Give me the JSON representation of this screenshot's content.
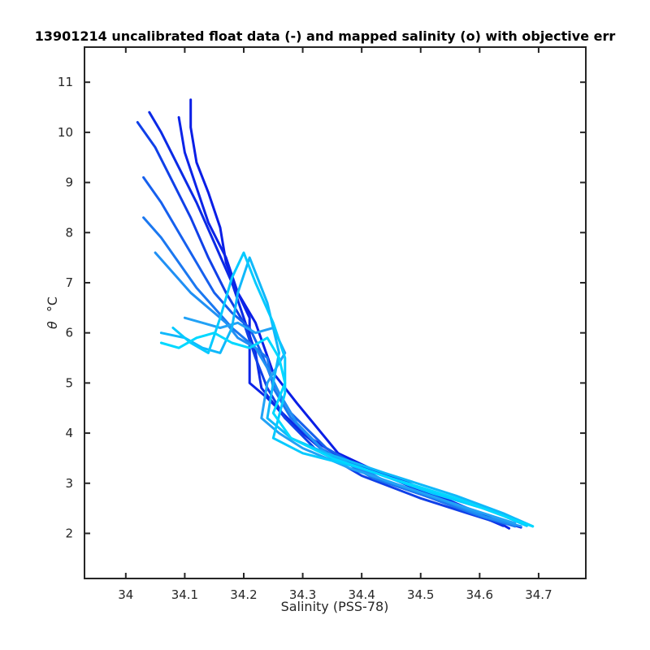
{
  "chart_data": {
    "type": "line",
    "title": "13901214 uncalibrated float data (-) and mapped salinity (o) with objective err",
    "xlabel": "Salinity (PSS-78)",
    "ylabel_symbol": "θ",
    "ylabel_unit": "°C",
    "xlim": [
      33.93,
      34.78
    ],
    "ylim": [
      1.1,
      11.7
    ],
    "xticks": [
      "34",
      "34.1",
      "34.2",
      "34.3",
      "34.4",
      "34.5",
      "34.6",
      "34.7"
    ],
    "yticks": [
      "2",
      "3",
      "4",
      "5",
      "6",
      "7",
      "8",
      "9",
      "10",
      "11"
    ],
    "grid": false,
    "color_range": [
      "#0010e0",
      "#00d8ff"
    ],
    "series": [
      {
        "color": "#0a1ee6",
        "x": [
          34.11,
          34.11,
          34.12,
          34.14,
          34.16,
          34.17,
          34.19,
          34.22,
          34.25,
          34.29,
          34.36,
          34.45,
          34.55,
          34.62,
          34.67
        ],
        "y": [
          10.65,
          10.1,
          9.4,
          8.8,
          8.1,
          7.4,
          6.8,
          6.2,
          5.2,
          4.6,
          3.6,
          3.1,
          2.6,
          2.3,
          2.12
        ]
      },
      {
        "color": "#0c24e8",
        "x": [
          34.09,
          34.1,
          34.12,
          34.14,
          34.17,
          34.19,
          34.21,
          34.21,
          34.24,
          34.3,
          34.38,
          34.48,
          34.56,
          34.62,
          34.65
        ],
        "y": [
          10.3,
          9.6,
          8.9,
          8.2,
          7.5,
          6.8,
          6.3,
          5.0,
          4.7,
          4.0,
          3.4,
          3.0,
          2.6,
          2.3,
          2.1
        ]
      },
      {
        "color": "#0b2ae6",
        "x": [
          34.04,
          34.06,
          34.09,
          34.12,
          34.15,
          34.18,
          34.2,
          34.22,
          34.23,
          34.27,
          34.33,
          34.42,
          34.52,
          34.6,
          34.64
        ],
        "y": [
          10.4,
          10.0,
          9.3,
          8.6,
          7.8,
          7.0,
          6.3,
          5.6,
          4.9,
          4.3,
          3.7,
          3.1,
          2.7,
          2.35,
          2.15
        ]
      },
      {
        "color": "#1040e8",
        "x": [
          34.02,
          34.05,
          34.08,
          34.11,
          34.14,
          34.17,
          34.2,
          34.22,
          34.24,
          34.27,
          34.32,
          34.4,
          34.5,
          34.58,
          34.64
        ],
        "y": [
          10.2,
          9.7,
          9.0,
          8.3,
          7.5,
          6.8,
          6.2,
          5.5,
          4.9,
          4.3,
          3.7,
          3.15,
          2.7,
          2.4,
          2.18
        ]
      },
      {
        "color": "#1660ee",
        "x": [
          34.03,
          34.06,
          34.09,
          34.12,
          34.15,
          34.18,
          34.21,
          34.23,
          34.25,
          34.28,
          34.34,
          34.43,
          34.53,
          34.6,
          34.66
        ],
        "y": [
          9.1,
          8.6,
          8.0,
          7.4,
          6.8,
          6.4,
          6.1,
          5.6,
          5.0,
          4.4,
          3.7,
          3.1,
          2.65,
          2.35,
          2.15
        ]
      },
      {
        "color": "#1b78f0",
        "x": [
          34.03,
          34.06,
          34.09,
          34.12,
          34.15,
          34.18,
          34.21,
          34.24,
          34.25,
          34.28,
          34.33,
          34.42,
          34.52,
          34.6,
          34.66
        ],
        "y": [
          8.3,
          7.9,
          7.4,
          6.9,
          6.5,
          6.1,
          5.8,
          5.5,
          4.9,
          4.3,
          3.7,
          3.1,
          2.7,
          2.35,
          2.14
        ]
      },
      {
        "color": "#2090f4",
        "x": [
          34.05,
          34.08,
          34.11,
          34.14,
          34.17,
          34.19,
          34.22,
          34.24,
          34.26,
          34.29,
          34.34,
          34.44,
          34.54,
          34.61,
          34.67
        ],
        "y": [
          7.6,
          7.2,
          6.8,
          6.5,
          6.2,
          5.9,
          5.7,
          5.3,
          4.8,
          4.2,
          3.6,
          3.05,
          2.65,
          2.33,
          2.14
        ]
      },
      {
        "color": "#22a2f6",
        "x": [
          34.1,
          34.13,
          34.16,
          34.19,
          34.22,
          34.25,
          34.27,
          34.24,
          34.23,
          34.26,
          34.3,
          34.38,
          34.48,
          34.58,
          34.66
        ],
        "y": [
          6.3,
          6.2,
          6.1,
          6.2,
          6.0,
          6.1,
          5.6,
          5.0,
          4.3,
          4.0,
          3.7,
          3.3,
          2.9,
          2.5,
          2.2
        ]
      },
      {
        "color": "#10b8fa",
        "x": [
          34.06,
          34.1,
          34.13,
          34.16,
          34.18,
          34.19,
          34.21,
          34.24,
          34.26,
          34.25,
          34.24,
          34.28,
          34.34,
          34.44,
          34.56,
          34.64,
          34.69
        ],
        "y": [
          6.0,
          5.9,
          5.7,
          5.6,
          6.1,
          6.8,
          7.5,
          6.6,
          5.6,
          5.0,
          4.3,
          3.9,
          3.6,
          3.2,
          2.75,
          2.4,
          2.14
        ]
      },
      {
        "color": "#06caff",
        "x": [
          34.08,
          34.11,
          34.14,
          34.16,
          34.18,
          34.2,
          34.22,
          34.25,
          34.27,
          34.27,
          34.25,
          34.3,
          34.4,
          34.52,
          34.62,
          34.68
        ],
        "y": [
          6.1,
          5.8,
          5.6,
          6.3,
          7.1,
          7.6,
          7.0,
          6.2,
          5.5,
          4.8,
          3.9,
          3.6,
          3.3,
          2.8,
          2.45,
          2.15
        ]
      },
      {
        "color": "#00d8ff",
        "x": [
          34.06,
          34.09,
          34.12,
          34.15,
          34.18,
          34.21,
          34.24,
          34.26,
          34.27,
          34.25,
          34.28,
          34.35,
          34.45,
          34.56,
          34.64,
          34.69
        ],
        "y": [
          5.8,
          5.7,
          5.9,
          6.0,
          5.8,
          5.7,
          5.9,
          5.5,
          5.0,
          4.4,
          3.9,
          3.5,
          3.1,
          2.7,
          2.35,
          2.14
        ]
      }
    ]
  }
}
